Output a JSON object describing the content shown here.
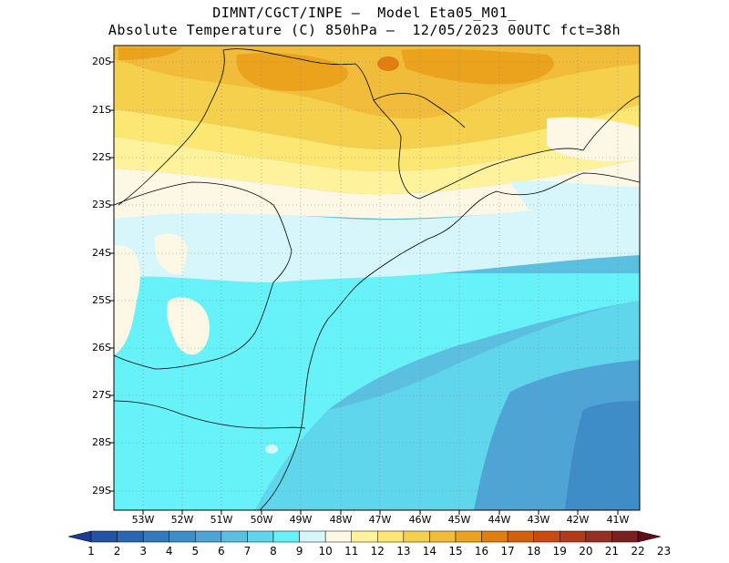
{
  "title_line1": "DIMNT/CGCT/INPE –  Model Eta05_M01_",
  "title_line2": "Absolute Temperature (C) 850hPa –  12/05/2023 00UTC fct=38h",
  "lat_labels": [
    "20S",
    "21S",
    "22S",
    "23S",
    "24S",
    "25S",
    "26S",
    "27S",
    "28S",
    "29S"
  ],
  "lon_labels": [
    "53W",
    "52W",
    "51W",
    "50W",
    "49W",
    "48W",
    "47W",
    "46W",
    "45W",
    "44W",
    "43W",
    "42W",
    "41W"
  ],
  "colorbar": {
    "labels": [
      "1",
      "2",
      "3",
      "4",
      "5",
      "6",
      "7",
      "8",
      "9",
      "10",
      "11",
      "12",
      "13",
      "14",
      "15",
      "16",
      "17",
      "18",
      "19",
      "20",
      "21",
      "22",
      "23"
    ],
    "colors": [
      "#1e3c96",
      "#2352a6",
      "#2a66b3",
      "#3478bd",
      "#3f8dc8",
      "#4fa4d6",
      "#5bbfe0",
      "#5fd6ec",
      "#66f2f8",
      "#d6f6fb",
      "#fdf8e6",
      "#fef29c",
      "#fde773",
      "#f5d04c",
      "#f0bc3a",
      "#eba21c",
      "#e07f10",
      "#d4600c",
      "#c84c10",
      "#b13a18",
      "#963020",
      "#7a2020",
      "#5c0f14"
    ]
  },
  "map": {
    "projection": "lat-lon",
    "lon_range": [
      "54W",
      "40.5W"
    ],
    "lat_range": [
      "29.5S",
      "19.6S"
    ],
    "grid": true,
    "variable": "Absolute Temperature (C) 850hPa",
    "field_summary": "warm (15-17C) over interior north, cooling southward; 9-10C over southern coast and ocean, 6-7C to the southeast"
  }
}
